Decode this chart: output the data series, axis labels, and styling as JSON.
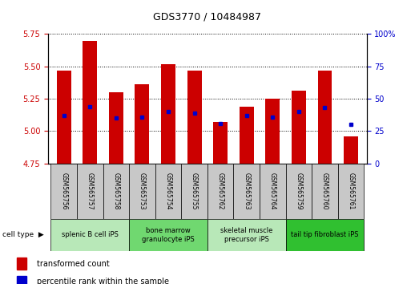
{
  "title": "GDS3770 / 10484987",
  "samples": [
    "GSM565756",
    "GSM565757",
    "GSM565758",
    "GSM565753",
    "GSM565754",
    "GSM565755",
    "GSM565762",
    "GSM565763",
    "GSM565764",
    "GSM565759",
    "GSM565760",
    "GSM565761"
  ],
  "bar_values": [
    5.47,
    5.7,
    5.3,
    5.36,
    5.52,
    5.47,
    5.07,
    5.19,
    5.25,
    5.31,
    5.47,
    4.96
  ],
  "percentile_values": [
    37,
    44,
    35,
    36,
    40,
    39,
    31,
    37,
    36,
    40,
    43,
    30
  ],
  "bar_base": 4.75,
  "ylim_left": [
    4.75,
    5.75
  ],
  "ylim_right": [
    0,
    100
  ],
  "yticks_left": [
    4.75,
    5.0,
    5.25,
    5.5,
    5.75
  ],
  "yticks_right": [
    0,
    25,
    50,
    75,
    100
  ],
  "bar_color": "#cc0000",
  "dot_color": "#0000cc",
  "cell_types": [
    {
      "label": "splenic B cell iPS",
      "start": 0,
      "end": 3
    },
    {
      "label": "bone marrow\ngranulocyte iPS",
      "start": 3,
      "end": 6
    },
    {
      "label": "skeletal muscle\nprecursor iPS",
      "start": 6,
      "end": 9
    },
    {
      "label": "tail tip fibroblast iPS",
      "start": 9,
      "end": 12
    }
  ],
  "cell_type_colors": [
    "#b8e8b8",
    "#70d870",
    "#b8e8b8",
    "#30c030"
  ],
  "sample_bg_color": "#c8c8c8",
  "title_fontsize": 9,
  "tick_fontsize": 7,
  "sample_fontsize": 5.5,
  "celltype_fontsize": 6,
  "legend_fontsize": 7
}
